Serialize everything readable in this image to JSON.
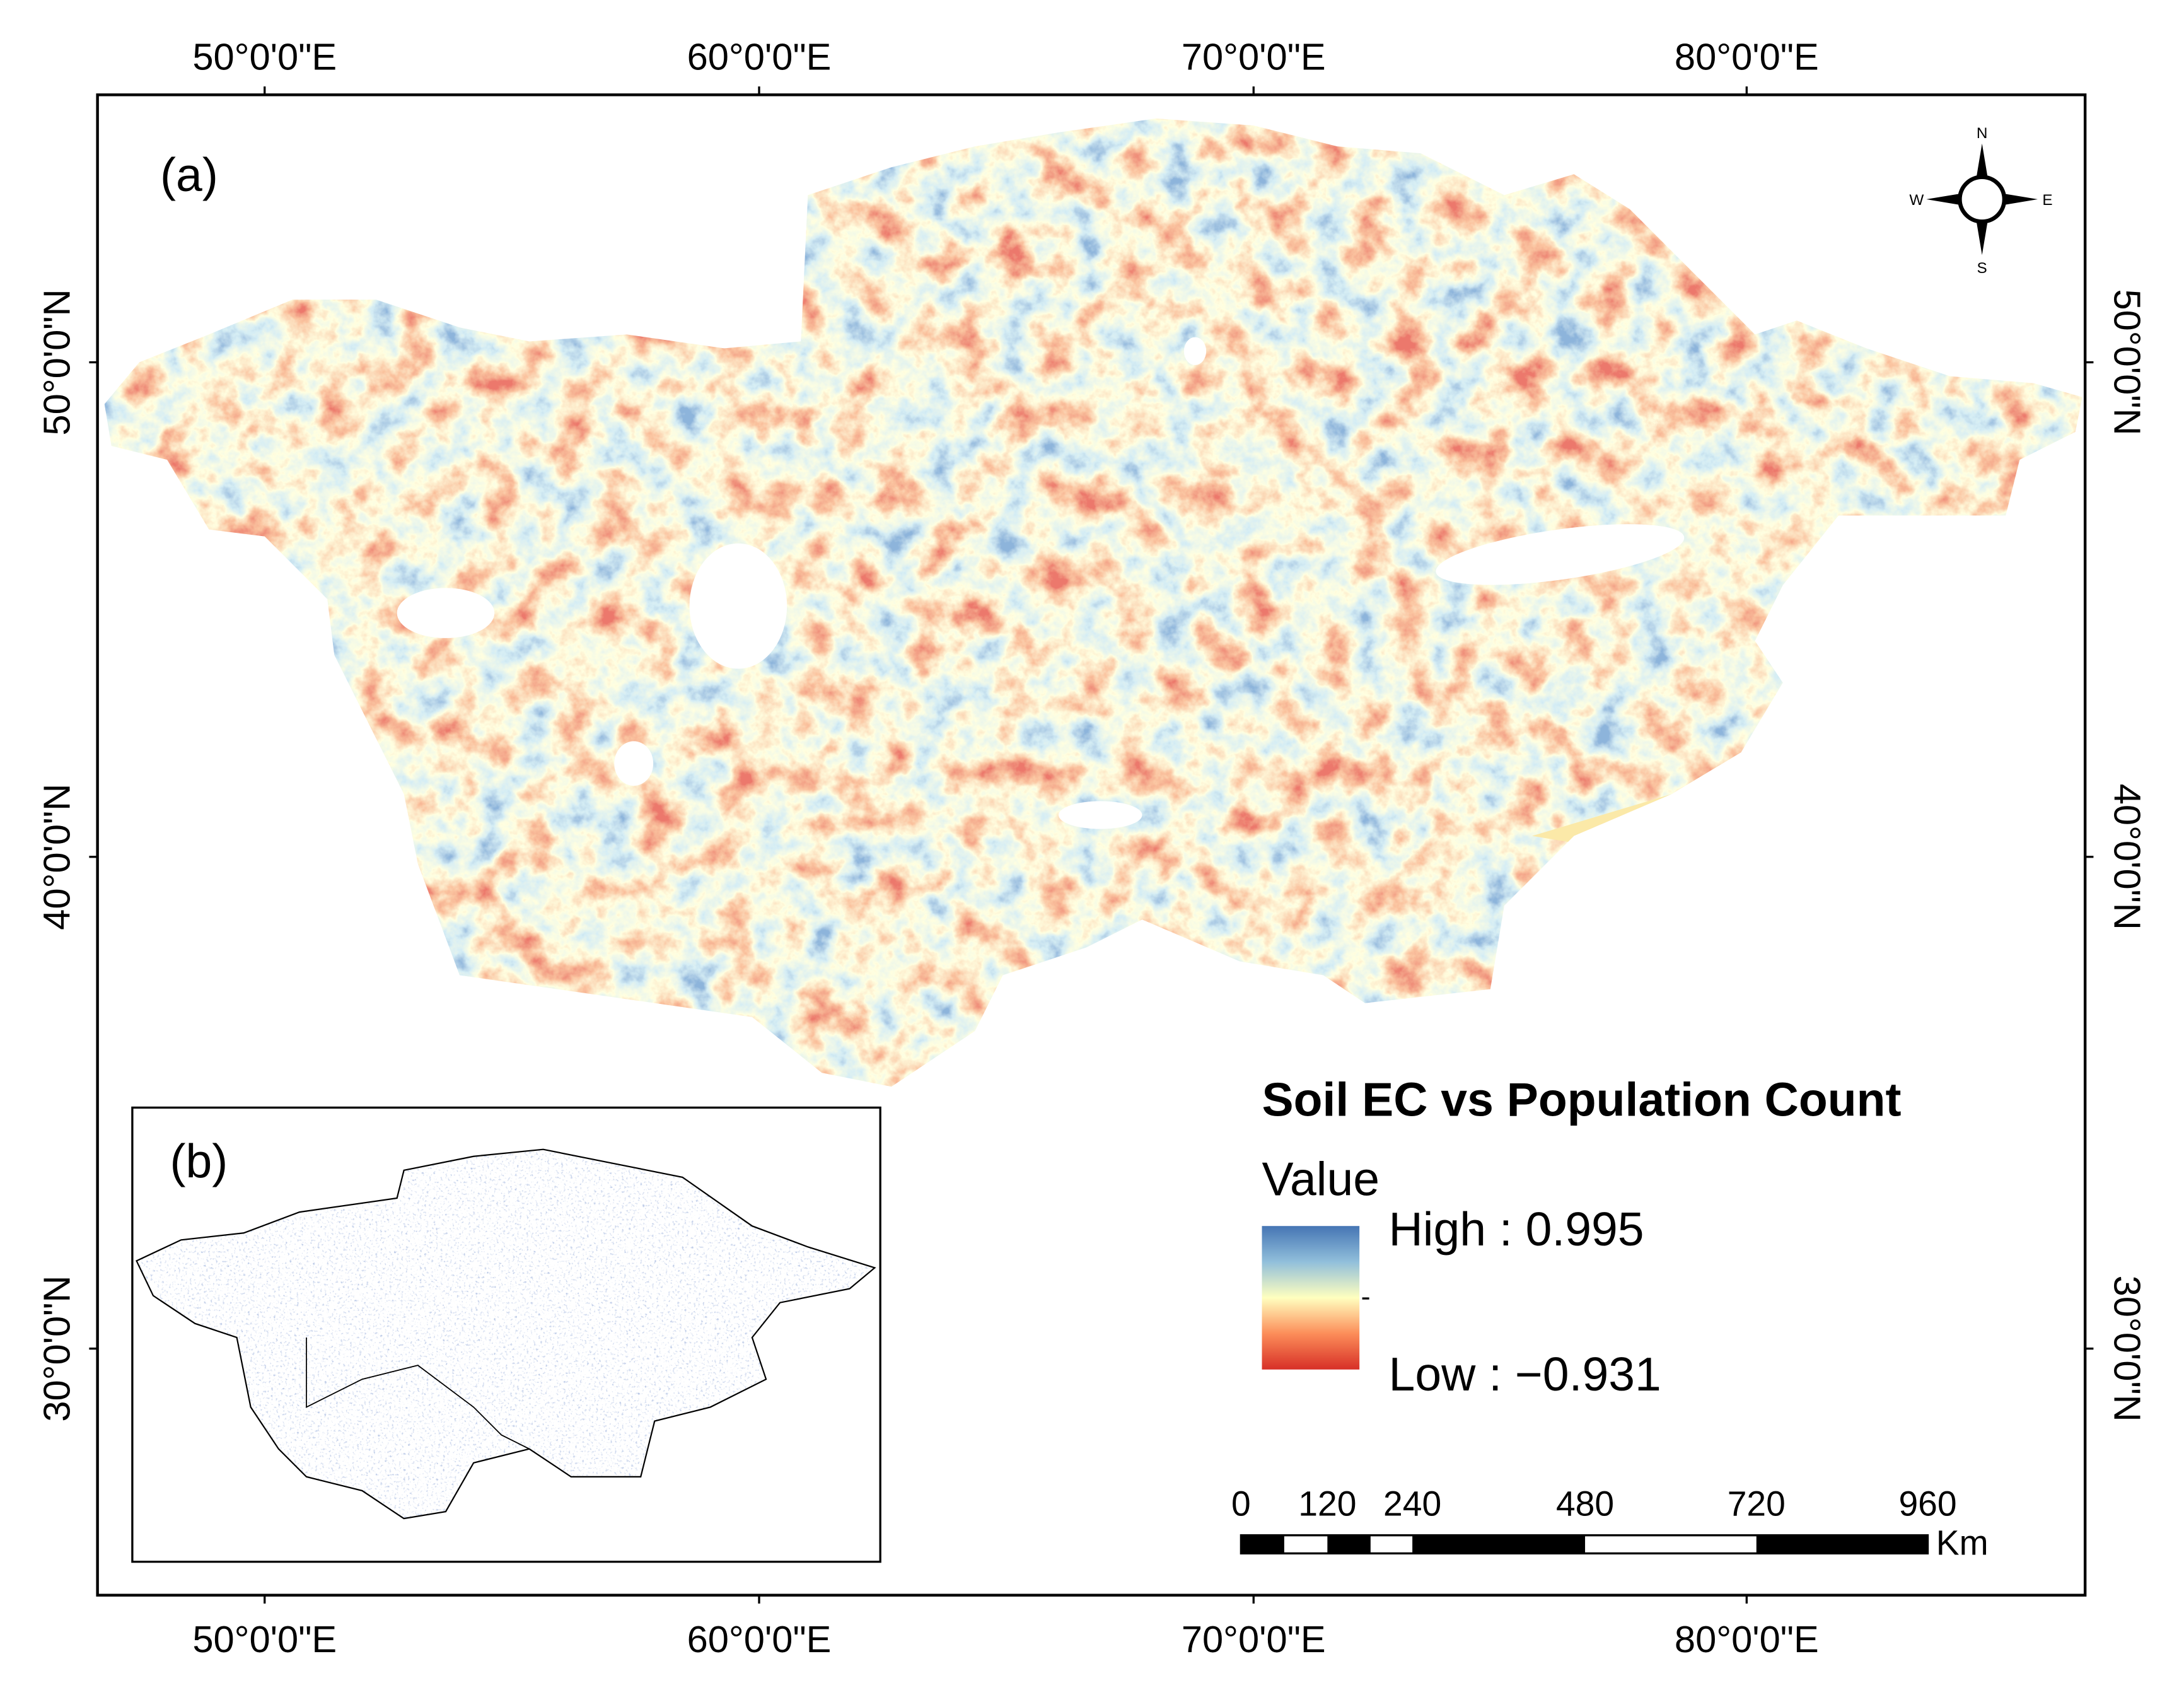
{
  "panel_labels": {
    "a": "(a)",
    "b": "(b)"
  },
  "axes": {
    "top": [
      "50°0'0\"E",
      "60°0'0\"E",
      "70°0'0\"E",
      "80°0'0\"E"
    ],
    "bottom": [
      "50°0'0\"E",
      "60°0'0\"E",
      "70°0'0\"E",
      "80°0'0\"E"
    ],
    "left": [
      "50°0'0\"N",
      "40°0'0\"N",
      "30°0'0\"N"
    ],
    "right": [
      "50°0'0\"N",
      "40°0'0\"N",
      "30°0'0\"N"
    ]
  },
  "compass": {
    "n": "N",
    "s": "S",
    "w": "W",
    "e": "E"
  },
  "legend": {
    "title": "Soil EC vs Population Count",
    "subtitle": "Value",
    "high": "High : 0.995",
    "low": "Low : −0.931"
  },
  "scale_bar": {
    "labels": [
      "0",
      "120",
      "240",
      "480",
      "720",
      "960"
    ],
    "unit": "Km"
  }
}
